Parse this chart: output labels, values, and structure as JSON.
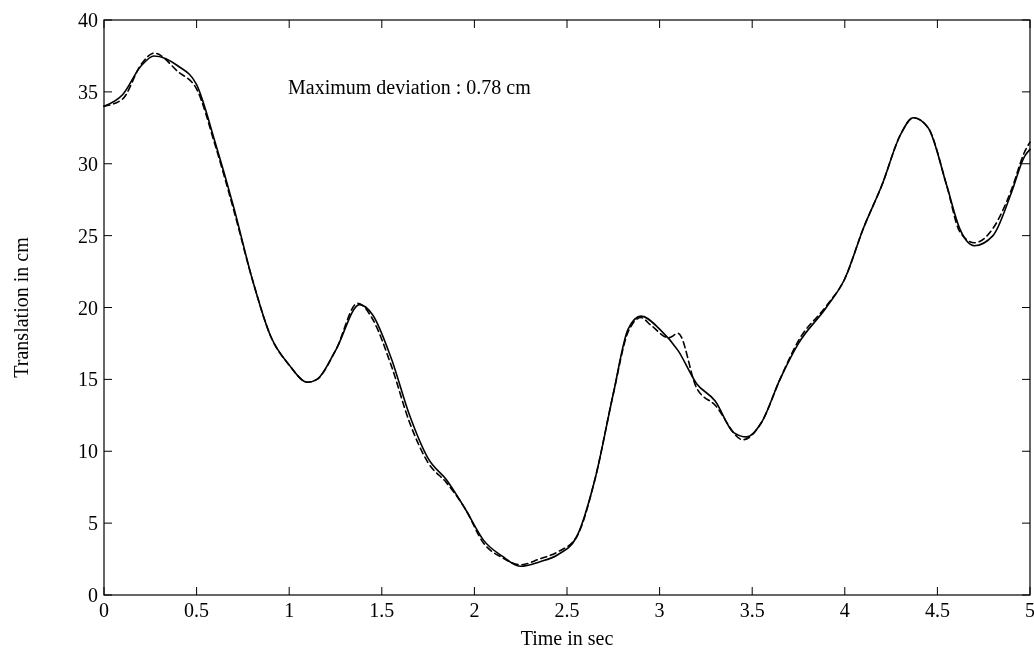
{
  "chart_data": {
    "type": "line",
    "xlabel": "Time in sec",
    "ylabel": "Translation in cm",
    "annotations": [
      "Maximum deviation : 0.78 cm"
    ],
    "xlim": [
      0,
      5
    ],
    "ylim": [
      0,
      40
    ],
    "xticks": [
      0,
      0.5,
      1,
      1.5,
      2,
      2.5,
      3,
      3.5,
      4,
      4.5,
      5
    ],
    "yticks": [
      0,
      5,
      10,
      15,
      20,
      25,
      30,
      35,
      40
    ],
    "grid": false,
    "series": [
      {
        "color": "#000000",
        "line_style": "solid",
        "x": [
          0,
          0.1,
          0.2,
          0.27,
          0.4,
          0.5,
          0.6,
          0.7,
          0.8,
          0.9,
          1.0,
          1.1,
          1.15,
          1.25,
          1.38,
          1.45,
          1.55,
          1.65,
          1.75,
          1.85,
          1.95,
          2.05,
          2.15,
          2.25,
          2.35,
          2.45,
          2.55,
          2.65,
          2.75,
          2.83,
          2.9,
          3.0,
          3.1,
          3.2,
          3.3,
          3.4,
          3.47,
          3.55,
          3.65,
          3.75,
          3.9,
          4.0,
          4.1,
          4.2,
          4.3,
          4.37,
          4.45,
          4.55,
          4.62,
          4.7,
          4.8,
          4.9,
          4.97,
          5.0
        ],
        "values": [
          34,
          34.8,
          36.8,
          37.5,
          36.8,
          35.5,
          31.5,
          27,
          22,
          18,
          16,
          14.8,
          15,
          17,
          20.2,
          19.5,
          16.5,
          12.5,
          9.5,
          8,
          6,
          3.8,
          2.7,
          2.0,
          2.3,
          2.8,
          4,
          8,
          14,
          18.5,
          19.4,
          18.5,
          17,
          14.7,
          13.5,
          11.3,
          11,
          12,
          15,
          17.5,
          20,
          22,
          25.5,
          28.5,
          32,
          33.2,
          32.5,
          28.5,
          25.5,
          24.3,
          25,
          28,
          30.5,
          31
        ]
      },
      {
        "color": "#000000",
        "line_style": "dashed",
        "x": [
          0,
          0.1,
          0.2,
          0.27,
          0.4,
          0.5,
          0.6,
          0.7,
          0.8,
          0.9,
          1.0,
          1.1,
          1.15,
          1.25,
          1.37,
          1.45,
          1.55,
          1.65,
          1.75,
          1.85,
          1.95,
          2.05,
          2.15,
          2.25,
          2.35,
          2.45,
          2.55,
          2.65,
          2.75,
          2.83,
          2.9,
          2.95,
          3.05,
          3.1,
          3.2,
          3.3,
          3.45,
          3.55,
          3.65,
          3.75,
          3.9,
          4.0,
          4.1,
          4.2,
          4.3,
          4.37,
          4.45,
          4.55,
          4.62,
          4.7,
          4.8,
          4.9,
          4.97,
          5.0
        ],
        "values": [
          34,
          34.5,
          36.9,
          37.7,
          36.4,
          35.2,
          31.3,
          26.8,
          22,
          18,
          16,
          14.8,
          15,
          17,
          20.3,
          19.2,
          16,
          12,
          9.2,
          7.8,
          6,
          3.6,
          2.6,
          2.1,
          2.5,
          3.0,
          4,
          8,
          14,
          18.3,
          19.3,
          18.8,
          17.9,
          18.2,
          14.4,
          13.2,
          10.8,
          12,
          15,
          17.7,
          20.1,
          22,
          25.5,
          28.5,
          32,
          33.2,
          32.5,
          28.5,
          25.3,
          24.5,
          25.5,
          28.2,
          30.8,
          31.5
        ]
      }
    ]
  }
}
